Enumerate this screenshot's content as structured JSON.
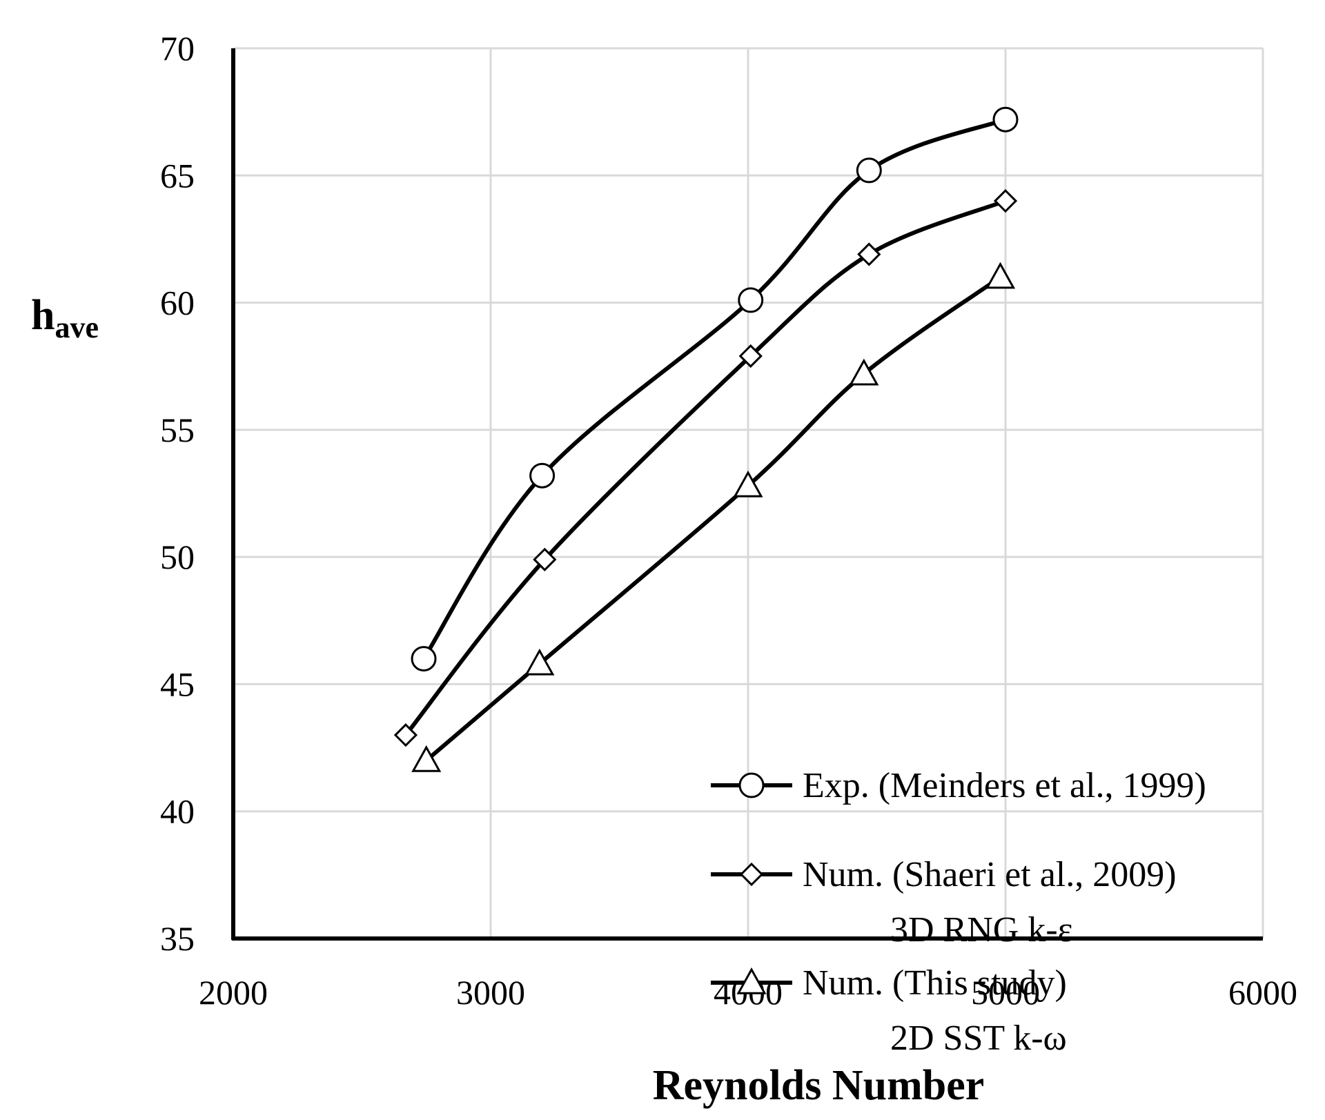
{
  "chart_data": {
    "type": "line",
    "title": "",
    "xlabel": "Reynolds  Number",
    "ylabel": {
      "main": "h",
      "sub": "ave"
    },
    "xlim": [
      2000,
      6000
    ],
    "ylim": [
      35,
      70
    ],
    "xticks": [
      "2000",
      "3000",
      "4000",
      "5000",
      "6000"
    ],
    "yticks": [
      "35",
      "40",
      "45",
      "50",
      "55",
      "60",
      "65",
      "70"
    ],
    "grid": true,
    "legend_position": "lower-right",
    "colors": {
      "line": "#000000",
      "grid": "#d9d9d9",
      "tick_text": "#000000"
    },
    "series": [
      {
        "name": "Exp. (Meinders et al., 1999)",
        "marker": "circle",
        "x": [
          2740,
          3200,
          4010,
          4470,
          5000
        ],
        "y": [
          46.0,
          53.2,
          60.1,
          65.2,
          67.2
        ]
      },
      {
        "name": "Num. (Shaeri et al., 2009)",
        "name_line2": "3D RNG k-ε",
        "marker": "diamond",
        "x": [
          2670,
          3210,
          4010,
          4470,
          5000
        ],
        "y": [
          43.0,
          49.9,
          57.9,
          61.9,
          64.0
        ]
      },
      {
        "name": "Num. (This study)",
        "name_line2": "2D SST k-ω",
        "marker": "triangle",
        "x": [
          2750,
          3190,
          4000,
          4450,
          4980
        ],
        "y": [
          42.0,
          45.8,
          52.8,
          57.2,
          61.0
        ]
      }
    ]
  }
}
